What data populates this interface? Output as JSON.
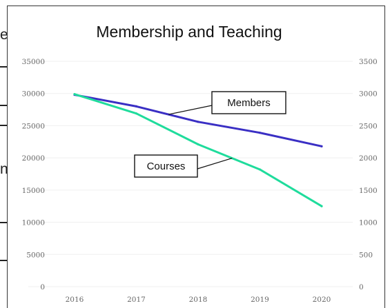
{
  "edge_text": [
    "e",
    "n"
  ],
  "chart_data": {
    "type": "line",
    "title": "Membership and Teaching",
    "xlabel": "",
    "ylabel": "",
    "categories": [
      "2016",
      "2017",
      "2018",
      "2019",
      "2020"
    ],
    "y_left": {
      "min": 0,
      "max": 35000,
      "ticks": [
        "0",
        "5000",
        "10000",
        "15000",
        "20000",
        "25000",
        "30000",
        "35000"
      ]
    },
    "y_right": {
      "min": 0,
      "max": 3500,
      "ticks": [
        "0",
        "500",
        "1000",
        "1500",
        "2000",
        "2500",
        "3000",
        "3500"
      ]
    },
    "grid": true,
    "series": [
      {
        "name": "Members",
        "axis": "left",
        "color": "#3a2fc4",
        "values": [
          29800,
          28000,
          25600,
          23900,
          21800
        ]
      },
      {
        "name": "Courses",
        "axis": "right",
        "color": "#1fdc9c",
        "values": [
          2990,
          2690,
          2210,
          1820,
          1250
        ]
      }
    ],
    "callouts": [
      {
        "label": "Members",
        "series": "Members"
      },
      {
        "label": "Courses",
        "series": "Courses"
      }
    ]
  }
}
